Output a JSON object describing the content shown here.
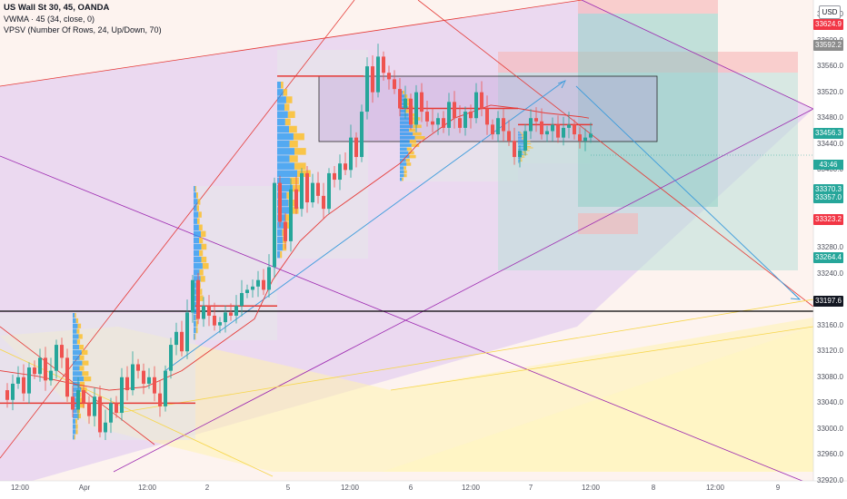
{
  "legend": {
    "title": "US Wall St 30, 45, OANDA",
    "vwma": "VWMA · 45 (34, close, 0)",
    "vpsv": "VPSV (Number Of Rows, 24, Up/Down, 70)"
  },
  "currency_button": "USD",
  "countdown": "43:46",
  "price_ticks": [
    "33640.0",
    "33600.0",
    "33560.0",
    "33520.0",
    "33480.0",
    "33440.0",
    "33400.0",
    "33360.0",
    "33320.0",
    "33280.0",
    "33240.0",
    "33200.0",
    "33160.0",
    "33120.0",
    "33080.0",
    "33040.0",
    "33000.0",
    "32960.0",
    "32920.0"
  ],
  "price_tags": [
    {
      "label": "33624.9",
      "color": "#f23645"
    },
    {
      "label": "33592.2",
      "color": "#8c8c8c"
    },
    {
      "label": "33456.3",
      "color": "#26a69a"
    },
    {
      "label": "33370.3",
      "color": "#26a69a"
    },
    {
      "label": "33357.0",
      "color": "#26a69a"
    },
    {
      "label": "33323.2",
      "color": "#f23645"
    },
    {
      "label": "33264.4",
      "color": "#26a69a"
    },
    {
      "label": "33197.6",
      "color": "#131722"
    }
  ],
  "time_ticks": [
    "12:00",
    "Apr",
    "12:00",
    "2",
    "5",
    "12:00",
    "6",
    "12:00",
    "7",
    "12:00",
    "8",
    "12:00",
    "9"
  ],
  "colors": {
    "up": "#26a69a",
    "down": "#ef5350",
    "vwma": "#e53935",
    "level_line": "#000000"
  },
  "chart_data": {
    "type": "candlestick",
    "symbol": "US Wall St 30",
    "timeframe": "45",
    "source": "OANDA",
    "ylim": [
      32900,
      33680
    ],
    "last_price": 33456.3,
    "horizontal_level": 33197.6,
    "close_path": [
      [
        0,
        33060
      ],
      [
        6,
        33045
      ],
      [
        12,
        33070
      ],
      [
        18,
        33080
      ],
      [
        24,
        33055
      ],
      [
        30,
        33095
      ],
      [
        36,
        33085
      ],
      [
        42,
        33110
      ],
      [
        48,
        33075
      ],
      [
        54,
        33090
      ],
      [
        60,
        33130
      ],
      [
        66,
        33110
      ],
      [
        72,
        33050
      ],
      [
        78,
        33030
      ],
      [
        84,
        33060
      ],
      [
        90,
        33040
      ],
      [
        96,
        33020
      ],
      [
        102,
        33050
      ],
      [
        108,
        32995
      ],
      [
        114,
        33010
      ],
      [
        120,
        33040
      ],
      [
        126,
        33025
      ],
      [
        132,
        33080
      ],
      [
        138,
        33060
      ],
      [
        144,
        33100
      ],
      [
        150,
        33090
      ],
      [
        156,
        33070
      ],
      [
        162,
        33080
      ],
      [
        168,
        33055
      ],
      [
        174,
        33035
      ],
      [
        180,
        33090
      ],
      [
        186,
        33130
      ],
      [
        192,
        33150
      ],
      [
        198,
        33120
      ],
      [
        204,
        33180
      ],
      [
        210,
        33230
      ],
      [
        216,
        33170
      ],
      [
        222,
        33190
      ],
      [
        228,
        33175
      ],
      [
        234,
        33160
      ],
      [
        240,
        33165
      ],
      [
        246,
        33180
      ],
      [
        252,
        33175
      ],
      [
        258,
        33190
      ],
      [
        264,
        33210
      ],
      [
        270,
        33215
      ],
      [
        276,
        33220
      ],
      [
        282,
        33230
      ],
      [
        288,
        33215
      ],
      [
        294,
        33250
      ],
      [
        300,
        33380
      ],
      [
        306,
        33320
      ],
      [
        312,
        33290
      ],
      [
        318,
        33370
      ],
      [
        324,
        33340
      ],
      [
        330,
        33395
      ],
      [
        336,
        33350
      ],
      [
        342,
        33380
      ],
      [
        348,
        33360
      ],
      [
        354,
        33340
      ],
      [
        360,
        33395
      ],
      [
        366,
        33385
      ],
      [
        372,
        33410
      ],
      [
        378,
        33400
      ],
      [
        384,
        33450
      ],
      [
        390,
        33420
      ],
      [
        396,
        33490
      ],
      [
        402,
        33560
      ],
      [
        408,
        33520
      ],
      [
        414,
        33575
      ],
      [
        420,
        33550
      ],
      [
        426,
        33540
      ],
      [
        432,
        33525
      ],
      [
        438,
        33495
      ],
      [
        444,
        33510
      ],
      [
        450,
        33470
      ],
      [
        456,
        33520
      ],
      [
        462,
        33490
      ],
      [
        468,
        33475
      ],
      [
        474,
        33470
      ],
      [
        480,
        33480
      ],
      [
        486,
        33465
      ],
      [
        492,
        33505
      ],
      [
        498,
        33480
      ],
      [
        504,
        33465
      ],
      [
        510,
        33490
      ],
      [
        516,
        33480
      ],
      [
        522,
        33520
      ],
      [
        528,
        33495
      ],
      [
        534,
        33470
      ],
      [
        540,
        33455
      ],
      [
        546,
        33480
      ],
      [
        552,
        33460
      ],
      [
        558,
        33445
      ],
      [
        564,
        33420
      ],
      [
        570,
        33430
      ],
      [
        576,
        33460
      ],
      [
        582,
        33480
      ],
      [
        588,
        33475
      ],
      [
        594,
        33455
      ],
      [
        600,
        33460
      ],
      [
        606,
        33470
      ],
      [
        612,
        33450
      ],
      [
        618,
        33465
      ],
      [
        624,
        33470
      ],
      [
        630,
        33455
      ],
      [
        636,
        33445
      ],
      [
        642,
        33450
      ],
      [
        648,
        33456
      ]
    ],
    "vwma_path": [
      [
        0,
        33090
      ],
      [
        40,
        33082
      ],
      [
        80,
        33070
      ],
      [
        120,
        33060
      ],
      [
        160,
        33065
      ],
      [
        200,
        33090
      ],
      [
        240,
        33130
      ],
      [
        280,
        33170
      ],
      [
        300,
        33230
      ],
      [
        330,
        33290
      ],
      [
        360,
        33330
      ],
      [
        390,
        33360
      ],
      [
        420,
        33390
      ],
      [
        440,
        33410
      ],
      [
        460,
        33440
      ],
      [
        500,
        33480
      ],
      [
        540,
        33500
      ],
      [
        570,
        33495
      ],
      [
        600,
        33488
      ],
      [
        640,
        33482
      ],
      [
        648,
        33480
      ]
    ],
    "poc_levels": [
      {
        "x_from": 0,
        "x_to": 215,
        "price": 33040
      },
      {
        "x_from": 215,
        "x_to": 305,
        "price": 33190
      },
      {
        "x_from": 305,
        "x_to": 400,
        "price": 33545
      },
      {
        "x_from": 440,
        "x_to": 570,
        "price": 33495
      },
      {
        "x_from": 570,
        "x_to": 652,
        "price": 33470
      }
    ]
  }
}
